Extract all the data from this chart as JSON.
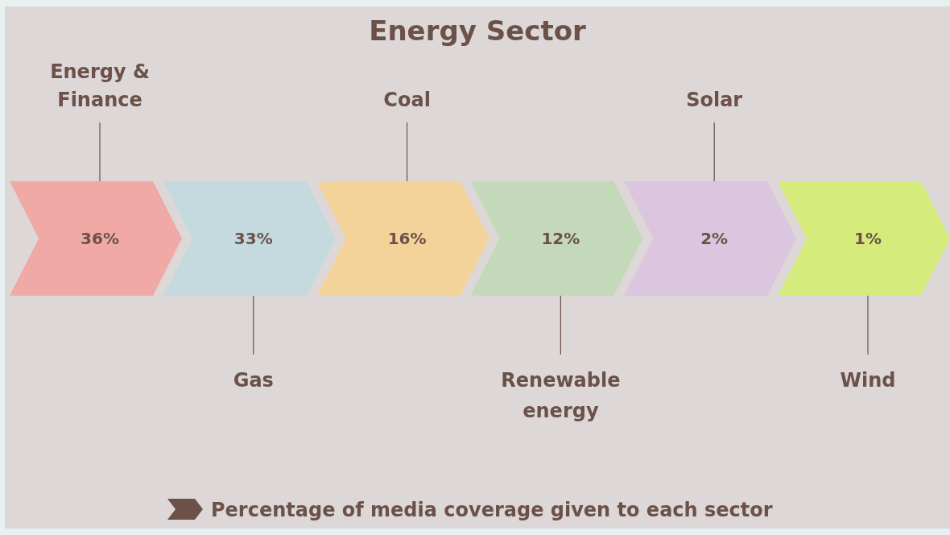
{
  "chart_data": {
    "type": "other",
    "title": "Energy Sector",
    "categories": [
      "Energy & Finance",
      "Gas",
      "Coal",
      "Renewable energy",
      "Solar",
      "Wind"
    ],
    "values": [
      36,
      33,
      16,
      12,
      2,
      1
    ],
    "value_labels": [
      "36%",
      "33%",
      "16%",
      "12%",
      "2%",
      "1%"
    ],
    "colors": [
      "#f0a9a5",
      "#c4dadf",
      "#f4d39b",
      "#c4d9b9",
      "#dcc5de",
      "#d5eb7c"
    ],
    "annotations": [
      "Percentage of media coverage given to each sector"
    ]
  }
}
